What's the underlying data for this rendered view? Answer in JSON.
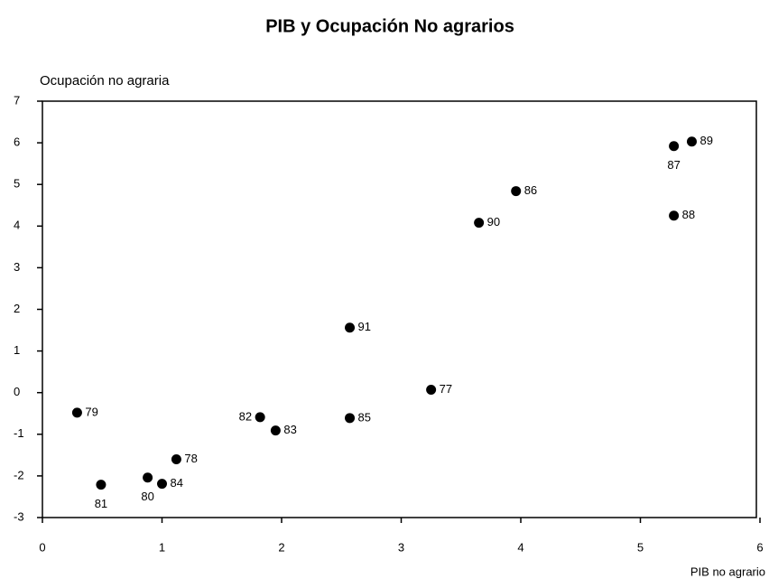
{
  "chart_data": {
    "type": "scatter",
    "title": "PIB y Ocupación No agrarios",
    "x_label": "PIB no agrario",
    "y_label": "Ocupación no agraria",
    "labels": [
      "79",
      "81",
      "80",
      "84",
      "78",
      "82",
      "83",
      "85",
      "91",
      "77",
      "90",
      "86",
      "87",
      "89",
      "88"
    ],
    "x": [
      0.29,
      0.49,
      0.88,
      1.0,
      1.12,
      1.82,
      1.95,
      2.57,
      2.57,
      3.25,
      3.65,
      3.96,
      5.28,
      5.43,
      5.28
    ],
    "values": [
      -0.48,
      -2.21,
      -2.04,
      -2.19,
      -1.6,
      -0.59,
      -0.91,
      -0.61,
      1.56,
      0.07,
      4.08,
      4.84,
      5.92,
      6.03,
      4.25
    ],
    "color": "#000000",
    "xlim": [
      0,
      6
    ],
    "xticks": [
      0,
      1,
      2,
      3,
      4,
      5,
      6
    ],
    "ylim": [
      -3,
      7
    ],
    "yticks": [
      -3,
      -2,
      -1,
      0,
      1,
      2,
      3,
      4,
      5,
      6,
      7
    ]
  }
}
